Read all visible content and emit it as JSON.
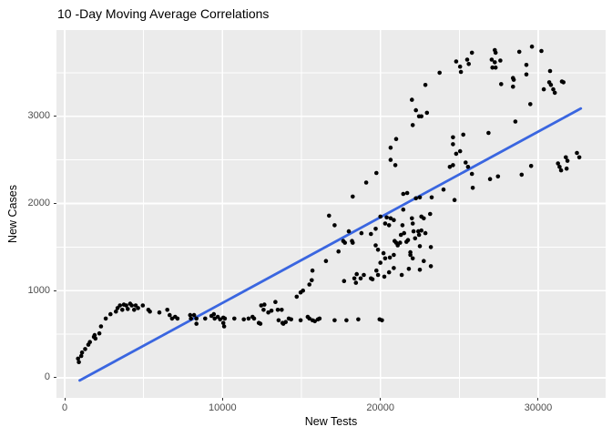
{
  "chart_data": {
    "type": "scatter",
    "title": "10 -Day Moving Average Correlations",
    "xlabel": "New Tests",
    "ylabel": "New Cases",
    "x_ticks": [
      0,
      10000,
      20000,
      30000
    ],
    "x_tick_labels": [
      "0",
      "10000",
      "20000",
      "30000"
    ],
    "y_ticks": [
      0,
      1000,
      2000,
      3000
    ],
    "y_tick_labels": [
      "0",
      "1000",
      "2000",
      "3000"
    ],
    "x_minor_ticks": [
      5000,
      15000,
      25000
    ],
    "y_minor_ticks": [
      500,
      1500,
      2500,
      3500
    ],
    "x_range": [
      -520,
      34270
    ],
    "y_range": [
      -230,
      3990
    ],
    "grid": true,
    "legend": "none",
    "panel_bg": "#EBEBEB",
    "grid_color": "#FFFFFF",
    "point_color": "#000000",
    "trend_line": {
      "type": "linear",
      "color": "#3A66E0",
      "x1": 950,
      "y1": -30,
      "x2": 32700,
      "y2": 3090
    },
    "points": [
      [
        900,
        180
      ],
      [
        850,
        220
      ],
      [
        1050,
        250
      ],
      [
        1100,
        290
      ],
      [
        1300,
        330
      ],
      [
        1500,
        380
      ],
      [
        1600,
        410
      ],
      [
        1850,
        470
      ],
      [
        1950,
        450
      ],
      [
        1900,
        490
      ],
      [
        2200,
        510
      ],
      [
        2300,
        590
      ],
      [
        2600,
        680
      ],
      [
        2900,
        730
      ],
      [
        3250,
        760
      ],
      [
        3350,
        800
      ],
      [
        3500,
        830
      ],
      [
        3650,
        780
      ],
      [
        3750,
        840
      ],
      [
        3900,
        830
      ],
      [
        4000,
        790
      ],
      [
        4150,
        850
      ],
      [
        4250,
        830
      ],
      [
        4400,
        780
      ],
      [
        4500,
        830
      ],
      [
        4650,
        800
      ],
      [
        4950,
        830
      ],
      [
        5300,
        780
      ],
      [
        5400,
        760
      ],
      [
        6000,
        750
      ],
      [
        6500,
        780
      ],
      [
        6650,
        720
      ],
      [
        6800,
        680
      ],
      [
        7000,
        700
      ],
      [
        7150,
        680
      ],
      [
        7950,
        720
      ],
      [
        8200,
        720
      ],
      [
        8000,
        680
      ],
      [
        8350,
        680
      ],
      [
        8350,
        620
      ],
      [
        8900,
        680
      ],
      [
        9300,
        710
      ],
      [
        9450,
        730
      ],
      [
        9500,
        680
      ],
      [
        9700,
        700
      ],
      [
        9850,
        670
      ],
      [
        10050,
        690
      ],
      [
        10150,
        680
      ],
      [
        10050,
        630
      ],
      [
        10100,
        590
      ],
      [
        10750,
        680
      ],
      [
        11350,
        670
      ],
      [
        11650,
        680
      ],
      [
        11900,
        700
      ],
      [
        12000,
        680
      ],
      [
        12450,
        830
      ],
      [
        12650,
        840
      ],
      [
        12600,
        780
      ],
      [
        12300,
        630
      ],
      [
        12400,
        620
      ],
      [
        12900,
        750
      ],
      [
        13100,
        770
      ],
      [
        13350,
        870
      ],
      [
        13500,
        780
      ],
      [
        13750,
        780
      ],
      [
        13550,
        660
      ],
      [
        13800,
        630
      ],
      [
        13850,
        620
      ],
      [
        14000,
        640
      ],
      [
        14200,
        680
      ],
      [
        14350,
        670
      ],
      [
        14700,
        930
      ],
      [
        14950,
        980
      ],
      [
        15100,
        1000
      ],
      [
        14950,
        660
      ],
      [
        15400,
        700
      ],
      [
        15500,
        1070
      ],
      [
        15650,
        1120
      ],
      [
        15500,
        680
      ],
      [
        15700,
        660
      ],
      [
        15850,
        650
      ],
      [
        16050,
        670
      ],
      [
        16150,
        680
      ],
      [
        17100,
        660
      ],
      [
        17850,
        660
      ],
      [
        18600,
        670
      ],
      [
        19950,
        670
      ],
      [
        20100,
        660
      ],
      [
        15700,
        1230
      ],
      [
        16550,
        1340
      ],
      [
        16750,
        1860
      ],
      [
        17700,
        1110
      ],
      [
        18350,
        1140
      ],
      [
        18450,
        1090
      ],
      [
        18750,
        1140
      ],
      [
        19400,
        1140
      ],
      [
        19500,
        1130
      ],
      [
        20250,
        1160
      ],
      [
        18500,
        1190
      ],
      [
        18950,
        1180
      ],
      [
        19850,
        1180
      ],
      [
        19750,
        1230
      ],
      [
        20550,
        1210
      ],
      [
        21350,
        1180
      ],
      [
        20850,
        1260
      ],
      [
        21800,
        1250
      ],
      [
        22500,
        1240
      ],
      [
        23200,
        1280
      ],
      [
        20000,
        1320
      ],
      [
        20300,
        1370
      ],
      [
        20600,
        1380
      ],
      [
        20850,
        1410
      ],
      [
        21900,
        1410
      ],
      [
        22050,
        1370
      ],
      [
        22750,
        1340
      ],
      [
        17350,
        1450
      ],
      [
        19850,
        1470
      ],
      [
        20200,
        1430
      ],
      [
        21900,
        1440
      ],
      [
        17650,
        1570
      ],
      [
        17750,
        1550
      ],
      [
        18200,
        1570
      ],
      [
        18250,
        1550
      ],
      [
        19700,
        1520
      ],
      [
        20900,
        1570
      ],
      [
        21000,
        1550
      ],
      [
        21100,
        1520
      ],
      [
        21250,
        1550
      ],
      [
        21650,
        1560
      ],
      [
        22500,
        1510
      ],
      [
        23200,
        1500
      ],
      [
        21300,
        1640
      ],
      [
        21500,
        1660
      ],
      [
        21750,
        1580
      ],
      [
        22450,
        1640
      ],
      [
        22200,
        1600
      ],
      [
        17100,
        1750
      ],
      [
        18000,
        1680
      ],
      [
        18800,
        1660
      ],
      [
        19400,
        1650
      ],
      [
        19700,
        1710
      ],
      [
        22050,
        1770
      ],
      [
        22100,
        1680
      ],
      [
        21400,
        1750
      ],
      [
        22400,
        1680
      ],
      [
        22600,
        1690
      ],
      [
        22850,
        1660
      ],
      [
        20300,
        1770
      ],
      [
        20550,
        1750
      ],
      [
        20850,
        1810
      ],
      [
        22000,
        1830
      ],
      [
        22600,
        1850
      ],
      [
        22750,
        1830
      ],
      [
        23150,
        1880
      ],
      [
        20000,
        1850
      ],
      [
        20400,
        1840
      ],
      [
        20650,
        1830
      ],
      [
        21450,
        1930
      ],
      [
        22250,
        2060
      ],
      [
        22500,
        2070
      ],
      [
        23250,
        2070
      ],
      [
        24000,
        2160
      ],
      [
        24700,
        2040
      ],
      [
        21450,
        2110
      ],
      [
        21700,
        2120
      ],
      [
        18250,
        2080
      ],
      [
        19100,
        2240
      ],
      [
        19750,
        2350
      ],
      [
        20650,
        2500
      ],
      [
        20950,
        2440
      ],
      [
        24800,
        2570
      ],
      [
        25400,
        2470
      ],
      [
        25550,
        2420
      ],
      [
        24400,
        2420
      ],
      [
        24600,
        2440
      ],
      [
        24600,
        2760
      ],
      [
        24600,
        2680
      ],
      [
        25250,
        2790
      ],
      [
        25050,
        2600
      ],
      [
        21000,
        2740
      ],
      [
        20650,
        2640
      ],
      [
        22050,
        2900
      ],
      [
        22450,
        3000
      ],
      [
        22600,
        3000
      ],
      [
        22950,
        3040
      ],
      [
        22250,
        3070
      ],
      [
        22000,
        3190
      ],
      [
        22850,
        3360
      ],
      [
        23750,
        3500
      ],
      [
        25100,
        3510
      ],
      [
        24800,
        3630
      ],
      [
        25050,
        3570
      ],
      [
        25500,
        3650
      ],
      [
        25600,
        3600
      ],
      [
        25800,
        3730
      ],
      [
        27250,
        3760
      ],
      [
        27300,
        3730
      ],
      [
        27050,
        3650
      ],
      [
        27250,
        3620
      ],
      [
        27600,
        3640
      ],
      [
        27100,
        3560
      ],
      [
        27300,
        3560
      ],
      [
        28800,
        3740
      ],
      [
        29600,
        3800
      ],
      [
        30200,
        3750
      ],
      [
        29250,
        3590
      ],
      [
        29250,
        3480
      ],
      [
        28400,
        3440
      ],
      [
        28450,
        3420
      ],
      [
        27650,
        3370
      ],
      [
        28400,
        3340
      ],
      [
        30750,
        3520
      ],
      [
        30700,
        3390
      ],
      [
        30800,
        3360
      ],
      [
        30950,
        3310
      ],
      [
        30350,
        3310
      ],
      [
        31050,
        3270
      ],
      [
        31500,
        3400
      ],
      [
        31600,
        3390
      ],
      [
        29500,
        3140
      ],
      [
        28550,
        2940
      ],
      [
        26850,
        2810
      ],
      [
        25800,
        2340
      ],
      [
        25850,
        2180
      ],
      [
        26950,
        2280
      ],
      [
        27450,
        2310
      ],
      [
        28950,
        2330
      ],
      [
        29550,
        2430
      ],
      [
        31250,
        2460
      ],
      [
        31350,
        2420
      ],
      [
        31450,
        2380
      ],
      [
        31800,
        2400
      ],
      [
        31750,
        2530
      ],
      [
        31850,
        2490
      ],
      [
        32450,
        2580
      ],
      [
        32600,
        2530
      ]
    ]
  }
}
